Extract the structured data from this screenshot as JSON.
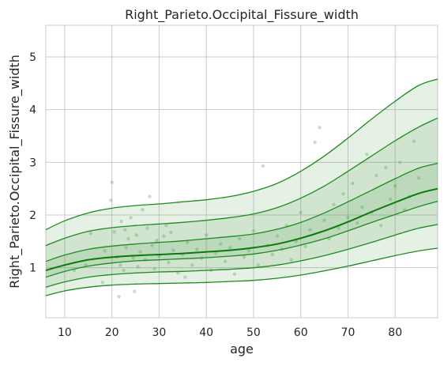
{
  "chart_data": {
    "type": "line",
    "title": "Right_Parieto.Occipital_Fissure_width",
    "xlabel": "age",
    "ylabel": "Right_Parieto.Occipital_Fissure_width",
    "xlim": [
      6,
      89
    ],
    "ylim": [
      0.05,
      5.6
    ],
    "xticks": [
      10,
      20,
      30,
      40,
      50,
      60,
      70,
      80
    ],
    "yticks": [
      1,
      2,
      3,
      4,
      5
    ],
    "grid": true,
    "colors": {
      "line": "#1f8a1f",
      "median": "#0a7a0a",
      "band": "#2e8b2e",
      "points": "#3a9a3a",
      "grid": "#cccccc",
      "background": "#ffffff"
    },
    "x": [
      6,
      10,
      15,
      20,
      25,
      30,
      35,
      40,
      45,
      50,
      55,
      60,
      65,
      70,
      75,
      80,
      85,
      89
    ],
    "series": [
      {
        "values": [
          0.47,
          0.56,
          0.63,
          0.67,
          0.69,
          0.7,
          0.71,
          0.72,
          0.74,
          0.76,
          0.8,
          0.86,
          0.94,
          1.03,
          1.13,
          1.23,
          1.32,
          1.37
        ]
      },
      {
        "values": [
          0.63,
          0.73,
          0.82,
          0.87,
          0.9,
          0.92,
          0.93,
          0.95,
          0.97,
          1.0,
          1.05,
          1.13,
          1.23,
          1.35,
          1.48,
          1.62,
          1.75,
          1.82
        ]
      },
      {
        "values": [
          0.82,
          0.93,
          1.03,
          1.09,
          1.13,
          1.15,
          1.17,
          1.19,
          1.22,
          1.26,
          1.33,
          1.43,
          1.55,
          1.7,
          1.86,
          2.01,
          2.16,
          2.26
        ]
      },
      {
        "values": [
          0.95,
          1.05,
          1.15,
          1.2,
          1.23,
          1.25,
          1.27,
          1.3,
          1.33,
          1.38,
          1.45,
          1.56,
          1.7,
          1.87,
          2.06,
          2.24,
          2.41,
          2.5
        ]
      },
      {
        "values": [
          1.12,
          1.24,
          1.35,
          1.41,
          1.45,
          1.48,
          1.51,
          1.55,
          1.59,
          1.64,
          1.73,
          1.86,
          2.04,
          2.25,
          2.47,
          2.69,
          2.89,
          2.98
        ]
      },
      {
        "values": [
          1.42,
          1.56,
          1.69,
          1.76,
          1.8,
          1.83,
          1.86,
          1.9,
          1.95,
          2.02,
          2.14,
          2.32,
          2.55,
          2.83,
          3.12,
          3.41,
          3.67,
          3.84
        ]
      },
      {
        "values": [
          1.72,
          1.89,
          2.04,
          2.13,
          2.18,
          2.21,
          2.25,
          2.29,
          2.35,
          2.45,
          2.6,
          2.83,
          3.12,
          3.46,
          3.82,
          4.16,
          4.46,
          4.58
        ]
      }
    ],
    "scatter_points": [
      [
        20.0,
        2.62
      ],
      [
        19.8,
        2.28
      ],
      [
        26.5,
        2.1
      ],
      [
        28.0,
        2.35
      ],
      [
        31.5,
        1.8
      ],
      [
        24.0,
        1.95
      ],
      [
        22.0,
        1.88
      ],
      [
        23.5,
        1.55
      ],
      [
        18.5,
        1.32
      ],
      [
        21.0,
        1.2
      ],
      [
        21.8,
        1.05
      ],
      [
        22.5,
        0.95
      ],
      [
        23.0,
        1.38
      ],
      [
        24.5,
        1.18
      ],
      [
        25.5,
        1.02
      ],
      [
        26.0,
        1.3
      ],
      [
        27.0,
        1.15
      ],
      [
        28.5,
        1.42
      ],
      [
        29.0,
        0.98
      ],
      [
        30.0,
        1.22
      ],
      [
        31.0,
        1.6
      ],
      [
        32.0,
        1.1
      ],
      [
        33.0,
        1.33
      ],
      [
        34.0,
        0.9
      ],
      [
        35.0,
        1.25
      ],
      [
        36.0,
        1.48
      ],
      [
        37.0,
        1.05
      ],
      [
        38.0,
        1.35
      ],
      [
        39.0,
        1.18
      ],
      [
        40.0,
        1.62
      ],
      [
        41.0,
        0.95
      ],
      [
        42.0,
        1.28
      ],
      [
        43.0,
        1.45
      ],
      [
        44.0,
        1.12
      ],
      [
        45.0,
        1.38
      ],
      [
        46.0,
        0.88
      ],
      [
        47.0,
        1.55
      ],
      [
        48.0,
        1.2
      ],
      [
        49.0,
        1.32
      ],
      [
        50.0,
        1.7
      ],
      [
        51.0,
        1.05
      ],
      [
        52.0,
        2.93
      ],
      [
        53.0,
        1.42
      ],
      [
        54.0,
        1.25
      ],
      [
        55.0,
        1.6
      ],
      [
        56.0,
        1.35
      ],
      [
        57.0,
        1.8
      ],
      [
        58.0,
        1.15
      ],
      [
        59.0,
        1.5
      ],
      [
        60.0,
        2.05
      ],
      [
        61.0,
        1.4
      ],
      [
        62.0,
        1.72
      ],
      [
        63.0,
        3.38
      ],
      [
        64.0,
        3.66
      ],
      [
        65.0,
        1.9
      ],
      [
        66.0,
        1.55
      ],
      [
        67.0,
        2.2
      ],
      [
        68.0,
        1.75
      ],
      [
        69.0,
        2.4
      ],
      [
        70.0,
        1.95
      ],
      [
        71.0,
        2.6
      ],
      [
        72.0,
        1.85
      ],
      [
        73.0,
        2.15
      ],
      [
        74.0,
        3.15
      ],
      [
        75.0,
        2.05
      ],
      [
        76.0,
        2.75
      ],
      [
        77.0,
        1.8
      ],
      [
        78.0,
        2.9
      ],
      [
        79.0,
        2.3
      ],
      [
        80.0,
        2.55
      ],
      [
        81.0,
        3.0
      ],
      [
        82.0,
        2.1
      ],
      [
        83.0,
        2.35
      ],
      [
        84.0,
        3.4
      ],
      [
        85.0,
        2.7
      ],
      [
        21.5,
        0.45
      ],
      [
        24.8,
        0.55
      ],
      [
        35.5,
        0.82
      ],
      [
        18.0,
        0.72
      ],
      [
        20.5,
        1.68
      ],
      [
        22.8,
        1.72
      ],
      [
        25.2,
        1.62
      ],
      [
        27.5,
        1.75
      ],
      [
        29.5,
        1.52
      ],
      [
        32.5,
        1.67
      ],
      [
        15.5,
        1.65
      ],
      [
        14.5,
        1.05
      ],
      [
        12.0,
        0.95
      ]
    ]
  }
}
